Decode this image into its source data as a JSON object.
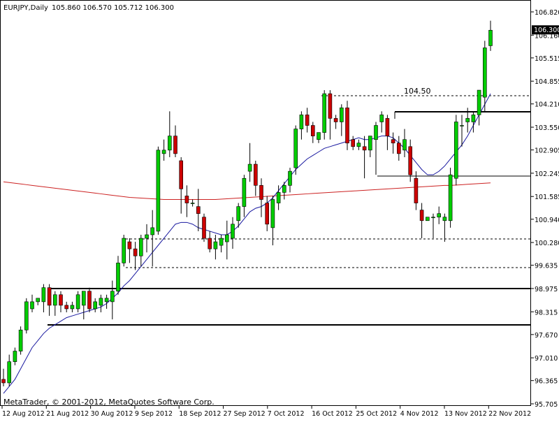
{
  "header": {
    "symbol_info": "EURJPY,Daily",
    "ohlc": "105.860 106.570 105.712 106.300"
  },
  "footer": {
    "copyright": "MetaTrader, © 2001-2012, MetaQuotes Software Corp."
  },
  "colors": {
    "bull": "#00cc00",
    "bear": "#cc0000",
    "wick": "#000000",
    "ma_fast": "#1a1aa0",
    "ma_slow": "#cc2222",
    "price_tag_bg": "#000000",
    "price_tag_fg": "#ffffff"
  },
  "chart_data": {
    "type": "candlestick",
    "y_axis_ticks": [
      "106.820",
      "106.160",
      "105.515",
      "104.855",
      "104.210",
      "103.550",
      "102.905",
      "102.245",
      "101.585",
      "100.940",
      "100.280",
      "99.635",
      "98.975",
      "98.315",
      "97.670",
      "97.010",
      "96.365",
      "95.705"
    ],
    "ylim": [
      95.705,
      106.82
    ],
    "x_axis_labels": [
      "12 Aug 2012",
      "21 Aug 2012",
      "30 Aug 2012",
      "9 Sep 2012",
      "18 Sep 2012",
      "27 Sep 2012",
      "7 Oct 2012",
      "16 Oct 2012",
      "25 Oct 2012",
      "4 Nov 2012",
      "13 Nov 2012",
      "22 Nov 2012"
    ],
    "current_price": "106.300",
    "annotation": "104.50",
    "candles": [
      [
        96.4,
        96.7,
        96.2,
        96.3
      ],
      [
        96.3,
        97.1,
        96.2,
        96.9
      ],
      [
        96.9,
        97.3,
        96.8,
        97.2
      ],
      [
        97.2,
        97.9,
        97.1,
        97.8
      ],
      [
        97.8,
        98.7,
        97.7,
        98.6
      ],
      [
        98.4,
        98.8,
        98.3,
        98.6
      ],
      [
        98.6,
        98.7,
        98.5,
        98.7
      ],
      [
        98.6,
        99.1,
        98.3,
        99.0
      ],
      [
        99.0,
        99.1,
        98.2,
        98.5
      ],
      [
        98.5,
        98.9,
        98.2,
        98.8
      ],
      [
        98.8,
        98.9,
        98.3,
        98.5
      ],
      [
        98.5,
        98.6,
        98.3,
        98.4
      ],
      [
        98.4,
        98.6,
        98.3,
        98.5
      ],
      [
        98.4,
        98.9,
        98.3,
        98.8
      ],
      [
        98.5,
        98.9,
        98.1,
        98.9
      ],
      [
        98.9,
        99.0,
        98.3,
        98.4
      ],
      [
        98.4,
        98.7,
        98.3,
        98.6
      ],
      [
        98.5,
        98.8,
        98.3,
        98.7
      ],
      [
        98.6,
        98.8,
        98.4,
        98.7
      ],
      [
        98.6,
        99.2,
        98.1,
        98.9
      ],
      [
        98.9,
        99.9,
        98.8,
        99.7
      ],
      [
        99.7,
        100.5,
        99.6,
        100.4
      ],
      [
        100.3,
        100.4,
        99.7,
        100.1
      ],
      [
        100.1,
        100.3,
        99.5,
        99.9
      ],
      [
        99.9,
        100.5,
        99.6,
        100.4
      ],
      [
        100.4,
        100.8,
        100.0,
        100.5
      ],
      [
        100.5,
        101.2,
        99.6,
        100.7
      ],
      [
        100.6,
        103.0,
        100.5,
        102.9
      ],
      [
        102.8,
        103.2,
        102.6,
        102.9
      ],
      [
        102.9,
        104.0,
        102.7,
        103.3
      ],
      [
        103.3,
        103.6,
        102.7,
        102.8
      ],
      [
        102.6,
        102.7,
        101.1,
        101.8
      ],
      [
        101.6,
        101.9,
        101.0,
        101.4
      ],
      [
        101.4,
        101.5,
        101.3,
        101.4
      ],
      [
        101.3,
        101.8,
        100.6,
        101.1
      ],
      [
        101.0,
        101.1,
        100.3,
        100.4
      ],
      [
        100.4,
        100.6,
        100.0,
        100.1
      ],
      [
        100.1,
        100.5,
        99.8,
        100.3
      ],
      [
        100.2,
        100.5,
        100.0,
        100.4
      ],
      [
        100.3,
        100.9,
        99.8,
        100.5
      ],
      [
        100.4,
        101.0,
        100.1,
        100.8
      ],
      [
        100.9,
        101.4,
        100.7,
        101.3
      ],
      [
        101.3,
        102.2,
        101.0,
        102.1
      ],
      [
        102.3,
        103.1,
        102.0,
        102.5
      ],
      [
        102.5,
        102.6,
        101.6,
        101.9
      ],
      [
        101.9,
        102.1,
        101.0,
        101.5
      ],
      [
        101.4,
        101.6,
        100.6,
        100.8
      ],
      [
        100.7,
        101.6,
        100.2,
        101.5
      ],
      [
        101.4,
        101.9,
        101.2,
        101.7
      ],
      [
        101.7,
        102.0,
        101.5,
        101.9
      ],
      [
        101.9,
        102.4,
        101.7,
        102.3
      ],
      [
        102.4,
        103.6,
        102.2,
        103.5
      ],
      [
        103.5,
        104.0,
        103.2,
        103.9
      ],
      [
        103.9,
        104.1,
        103.4,
        103.6
      ],
      [
        103.6,
        103.7,
        103.1,
        103.3
      ],
      [
        103.2,
        103.4,
        103.1,
        103.4
      ],
      [
        103.4,
        104.6,
        103.2,
        104.5
      ],
      [
        104.5,
        104.6,
        103.2,
        103.8
      ],
      [
        103.8,
        103.9,
        103.5,
        103.7
      ],
      [
        103.7,
        104.2,
        103.3,
        104.1
      ],
      [
        104.1,
        104.3,
        102.9,
        103.1
      ],
      [
        103.2,
        103.3,
        102.9,
        103.0
      ],
      [
        103.0,
        103.2,
        102.9,
        103.1
      ],
      [
        103.0,
        103.3,
        102.1,
        102.9
      ],
      [
        102.9,
        103.3,
        102.7,
        103.3
      ],
      [
        103.2,
        103.7,
        102.2,
        103.6
      ],
      [
        103.7,
        104.0,
        103.4,
        103.9
      ],
      [
        103.8,
        103.9,
        102.9,
        103.3
      ],
      [
        103.2,
        103.4,
        102.8,
        103.1
      ],
      [
        103.1,
        103.3,
        102.6,
        102.8
      ],
      [
        102.9,
        103.5,
        102.7,
        103.2
      ],
      [
        103.0,
        103.2,
        102.0,
        102.2
      ],
      [
        102.1,
        102.3,
        101.2,
        101.4
      ],
      [
        101.2,
        101.4,
        100.4,
        100.9
      ],
      [
        100.9,
        101.0,
        100.9,
        101.0
      ],
      [
        101.0,
        101.1,
        100.4,
        101.0
      ],
      [
        101.0,
        101.3,
        100.8,
        101.1
      ],
      [
        100.9,
        101.1,
        100.3,
        101.0
      ],
      [
        100.9,
        102.4,
        100.7,
        102.2
      ],
      [
        102.1,
        103.9,
        101.9,
        103.7
      ],
      [
        103.6,
        103.9,
        103.0,
        103.6
      ],
      [
        103.7,
        104.1,
        103.4,
        103.8
      ],
      [
        103.7,
        104.0,
        103.4,
        103.9
      ],
      [
        103.9,
        104.6,
        103.6,
        104.6
      ],
      [
        104.4,
        106.0,
        104.0,
        105.8
      ],
      [
        105.86,
        106.57,
        105.712,
        106.3
      ]
    ],
    "ma_fast": [
      96.0,
      96.2,
      96.4,
      96.7,
      97.0,
      97.3,
      97.5,
      97.7,
      97.85,
      97.95,
      98.05,
      98.15,
      98.2,
      98.25,
      98.3,
      98.35,
      98.4,
      98.45,
      98.55,
      98.7,
      98.85,
      99.05,
      99.2,
      99.4,
      99.6,
      99.8,
      100.0,
      100.2,
      100.4,
      100.6,
      100.8,
      100.85,
      100.85,
      100.8,
      100.7,
      100.65,
      100.6,
      100.55,
      100.5,
      100.5,
      100.6,
      100.75,
      100.95,
      101.15,
      101.25,
      101.3,
      101.4,
      101.55,
      101.75,
      101.95,
      102.15,
      102.35,
      102.5,
      102.65,
      102.75,
      102.85,
      102.95,
      103.0,
      103.05,
      103.1,
      103.15,
      103.2,
      103.25,
      103.2,
      103.2,
      103.25,
      103.3,
      103.3,
      103.25,
      103.1,
      102.95,
      102.75,
      102.55,
      102.35,
      102.2,
      102.2,
      102.3,
      102.45,
      102.65,
      102.85,
      103.05,
      103.3,
      103.6,
      103.9,
      104.2,
      104.5
    ],
    "ma_slow": [
      102.0,
      101.98,
      101.96,
      101.94,
      101.92,
      101.9,
      101.88,
      101.86,
      101.84,
      101.82,
      101.8,
      101.78,
      101.76,
      101.74,
      101.72,
      101.7,
      101.68,
      101.66,
      101.64,
      101.62,
      101.6,
      101.58,
      101.56,
      101.55,
      101.54,
      101.53,
      101.52,
      101.51,
      101.5,
      101.5,
      101.5,
      101.5,
      101.5,
      101.5,
      101.5,
      101.5,
      101.5,
      101.5,
      101.51,
      101.52,
      101.53,
      101.54,
      101.55,
      101.56,
      101.57,
      101.58,
      101.59,
      101.6,
      101.61,
      101.62,
      101.63,
      101.64,
      101.65,
      101.66,
      101.67,
      101.68,
      101.69,
      101.7,
      101.71,
      101.72,
      101.73,
      101.74,
      101.75,
      101.76,
      101.77,
      101.78,
      101.79,
      101.8,
      101.81,
      101.82,
      101.83,
      101.84,
      101.85,
      101.86,
      101.87,
      101.88,
      101.89,
      101.9,
      101.9,
      101.91,
      101.92,
      101.93,
      101.94,
      101.95,
      101.96,
      101.97
    ]
  }
}
